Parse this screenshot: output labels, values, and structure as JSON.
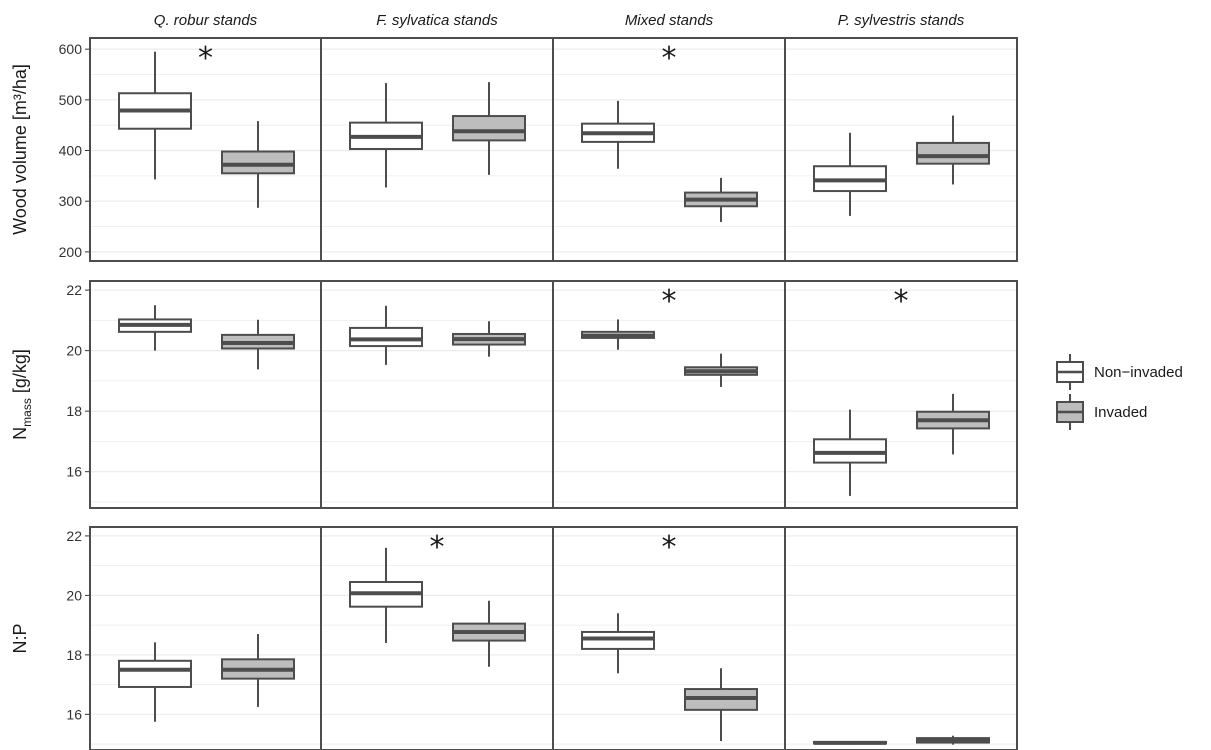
{
  "chart_data": {
    "type": "boxplot",
    "facets": [
      "Q. robur stands",
      "F. sylvatica stands",
      "Mixed stands",
      "P. sylvestris stands"
    ],
    "legend": {
      "position": "right",
      "entries": [
        {
          "label": "Non−invaded",
          "fill": "#ffffff"
        },
        {
          "label": "Invaded",
          "fill": "#bdbdbd"
        }
      ]
    },
    "grid": true,
    "panels": [
      {
        "ylabel": "Wood volume [m³/ha]",
        "ylim": [
          182,
          622
        ],
        "yticks": [
          200,
          300,
          400,
          500,
          600
        ],
        "boxes": [
          [
            {
              "min": 343,
              "q1": 443,
              "median": 479,
              "q3": 513,
              "max": 595
            },
            {
              "min": 287,
              "q1": 355,
              "median": 372,
              "q3": 398,
              "max": 458
            }
          ],
          [
            {
              "min": 327,
              "q1": 403,
              "median": 427,
              "q3": 455,
              "max": 533
            },
            {
              "min": 352,
              "q1": 420,
              "median": 438,
              "q3": 468,
              "max": 535
            }
          ],
          [
            {
              "min": 364,
              "q1": 417,
              "median": 434,
              "q3": 453,
              "max": 498
            },
            {
              "min": 259,
              "q1": 290,
              "median": 303,
              "q3": 317,
              "max": 346
            }
          ],
          [
            {
              "min": 271,
              "q1": 320,
              "median": 341,
              "q3": 369,
              "max": 435
            },
            {
              "min": 333,
              "q1": 374,
              "median": 389,
              "q3": 415,
              "max": 469
            }
          ]
        ],
        "significant": [
          true,
          false,
          true,
          false
        ]
      },
      {
        "ylabel": "N",
        "ylabel_sub": "mass",
        "ylabel_suffix": " [g/kg]",
        "ylim": [
          14.8,
          22.3
        ],
        "yticks": [
          16,
          18,
          20,
          22
        ],
        "boxes": [
          [
            {
              "min": 20.0,
              "q1": 20.62,
              "median": 20.85,
              "q3": 21.03,
              "max": 21.5
            },
            {
              "min": 19.38,
              "q1": 20.07,
              "median": 20.25,
              "q3": 20.52,
              "max": 21.02
            }
          ],
          [
            {
              "min": 19.53,
              "q1": 20.15,
              "median": 20.37,
              "q3": 20.75,
              "max": 21.48
            },
            {
              "min": 19.8,
              "q1": 20.2,
              "median": 20.38,
              "q3": 20.55,
              "max": 20.97
            }
          ],
          [
            {
              "min": 20.03,
              "q1": 20.42,
              "median": 20.5,
              "q3": 20.62,
              "max": 21.03
            },
            {
              "min": 18.8,
              "q1": 19.2,
              "median": 19.32,
              "q3": 19.45,
              "max": 19.9
            }
          ],
          [
            {
              "min": 15.2,
              "q1": 16.3,
              "median": 16.62,
              "q3": 17.07,
              "max": 18.05
            },
            {
              "min": 16.57,
              "q1": 17.43,
              "median": 17.7,
              "q3": 17.98,
              "max": 18.57
            }
          ]
        ],
        "significant": [
          false,
          false,
          true,
          true
        ]
      },
      {
        "ylabel": "N:P",
        "ylim": [
          14.8,
          22.3
        ],
        "yticks": [
          16,
          18,
          20,
          22
        ],
        "boxes": [
          [
            {
              "min": 15.75,
              "q1": 16.92,
              "median": 17.5,
              "q3": 17.8,
              "max": 18.42
            },
            {
              "min": 16.25,
              "q1": 17.2,
              "median": 17.5,
              "q3": 17.85,
              "max": 18.7
            }
          ],
          [
            {
              "min": 18.4,
              "q1": 19.62,
              "median": 20.07,
              "q3": 20.45,
              "max": 21.6
            },
            {
              "min": 17.6,
              "q1": 18.48,
              "median": 18.77,
              "q3": 19.05,
              "max": 19.82
            }
          ],
          [
            {
              "min": 17.38,
              "q1": 18.2,
              "median": 18.55,
              "q3": 18.77,
              "max": 19.4
            },
            {
              "min": 15.1,
              "q1": 16.15,
              "median": 16.55,
              "q3": 16.85,
              "max": 17.55
            }
          ],
          [
            {
              "min": 14.98,
              "q1": 15.02,
              "median": 15.04,
              "q3": 15.07,
              "max": 15.1
            },
            {
              "min": 14.98,
              "q1": 15.05,
              "median": 15.12,
              "q3": 15.2,
              "max": 15.28
            }
          ]
        ],
        "significant": [
          false,
          true,
          true,
          false
        ]
      }
    ]
  }
}
